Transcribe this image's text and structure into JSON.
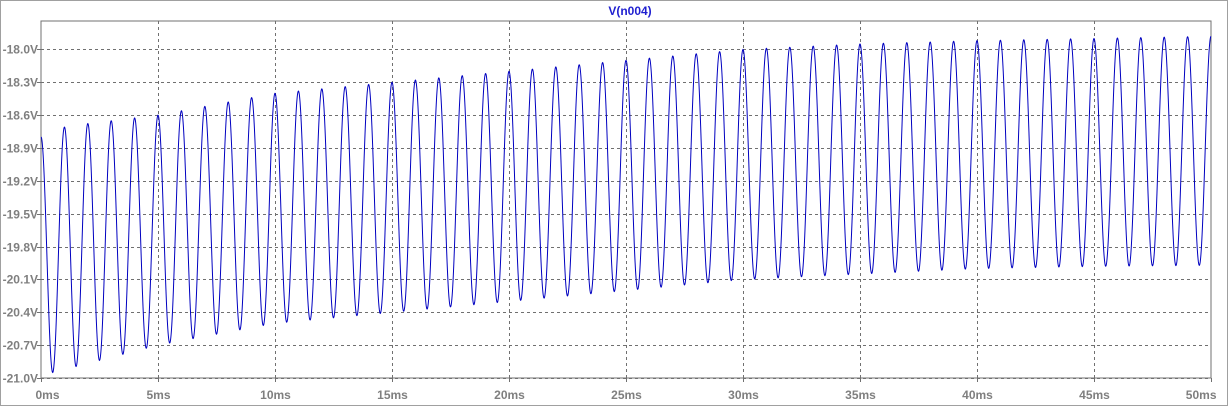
{
  "chart_data": {
    "type": "line",
    "title": "V(n004)",
    "xlabel": "",
    "ylabel": "",
    "x_unit": "ms",
    "xlim": [
      0,
      50
    ],
    "ylim": [
      -21.0,
      -17.8
    ],
    "x_ticks": [
      "0ms",
      "5ms",
      "10ms",
      "15ms",
      "20ms",
      "25ms",
      "30ms",
      "35ms",
      "40ms",
      "45ms",
      "50ms"
    ],
    "x_tick_values": [
      0,
      5,
      10,
      15,
      20,
      25,
      30,
      35,
      40,
      45,
      50
    ],
    "y_ticks": [
      "-18.0V",
      "-18.3V",
      "-18.6V",
      "-18.9V",
      "-19.2V",
      "-19.5V",
      "-19.8V",
      "-20.1V",
      "-20.4V",
      "-20.7V",
      "-21.0V"
    ],
    "y_tick_values": [
      -18.0,
      -18.3,
      -18.6,
      -18.9,
      -19.2,
      -19.5,
      -19.8,
      -20.1,
      -20.4,
      -20.7,
      -21.0
    ],
    "grid": true,
    "series": [
      {
        "name": "V(n004)",
        "color": "#0000c0",
        "signal": {
          "shape": "sine",
          "frequency_hz": 1000,
          "start_value": -18.8,
          "peaks_envelope": [
            [
              0,
              -18.8
            ],
            [
              1.1,
              -18.7
            ],
            [
              5,
              -18.6
            ],
            [
              10,
              -18.4
            ],
            [
              15,
              -18.3
            ],
            [
              20,
              -18.2
            ],
            [
              25,
              -18.1
            ],
            [
              30,
              -18.0
            ],
            [
              35,
              -17.95
            ],
            [
              40,
              -17.92
            ],
            [
              45,
              -17.9
            ],
            [
              50,
              -17.88
            ]
          ],
          "troughs_envelope": [
            [
              0.5,
              -20.95
            ],
            [
              5,
              -20.7
            ],
            [
              10,
              -20.5
            ],
            [
              15,
              -20.4
            ],
            [
              20,
              -20.3
            ],
            [
              25,
              -20.2
            ],
            [
              30,
              -20.1
            ],
            [
              35,
              -20.05
            ],
            [
              40,
              -20.0
            ],
            [
              45,
              -19.98
            ],
            [
              50,
              -19.97
            ]
          ],
          "end_value": -17.9
        }
      }
    ]
  },
  "colors": {
    "trace": "#0000c0",
    "grid": "#707070",
    "axis_label": "#7f7f7f",
    "title": "#1f1fd0",
    "frame": "#a0a0a0"
  }
}
